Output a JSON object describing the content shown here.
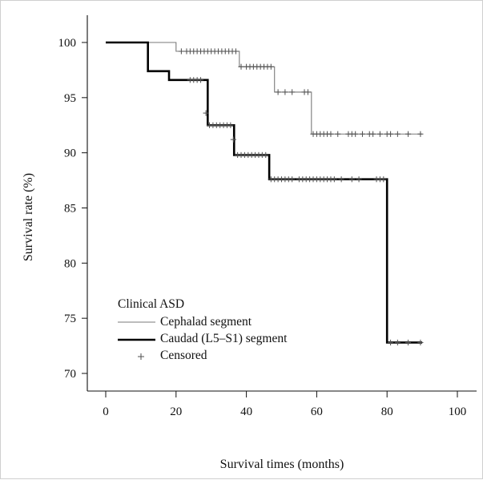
{
  "chart_data": {
    "type": "line",
    "subtype": "kaplan-meier-step",
    "xlabel": "Survival times (months)",
    "ylabel": "Survival rate (%)",
    "xlim": [
      0,
      100
    ],
    "ylim": [
      70,
      100
    ],
    "x_ticks": [
      "0",
      "20",
      "40",
      "60",
      "80",
      "100"
    ],
    "y_ticks": [
      "70",
      "75",
      "80",
      "85",
      "90",
      "95",
      "100"
    ],
    "grid": false,
    "legend": {
      "title": "Clinical ASD",
      "position": "bottom-left",
      "entries": [
        {
          "label": "Cephalad segment",
          "style": "thin-gray-line"
        },
        {
          "label": "Caudad (L5–S1) segment",
          "style": "thick-black-line"
        },
        {
          "label": "Censored",
          "style": "plus-marker"
        }
      ]
    },
    "series": [
      {
        "name": "Cephalad segment",
        "color": "#7a7a7a",
        "steps": [
          [
            0,
            100
          ],
          [
            20,
            99.2
          ],
          [
            38,
            97.8
          ],
          [
            48,
            95.5
          ],
          [
            58.5,
            91.7
          ],
          [
            90,
            91.7
          ]
        ],
        "censored": [
          [
            21.5,
            99.2
          ],
          [
            23,
            99.2
          ],
          [
            24,
            99.2
          ],
          [
            25,
            99.2
          ],
          [
            26,
            99.2
          ],
          [
            27,
            99.2
          ],
          [
            28,
            99.2
          ],
          [
            29,
            99.2
          ],
          [
            30,
            99.2
          ],
          [
            31,
            99.2
          ],
          [
            32,
            99.2
          ],
          [
            33,
            99.2
          ],
          [
            34,
            99.2
          ],
          [
            35,
            99.2
          ],
          [
            36,
            99.2
          ],
          [
            37,
            99.2
          ],
          [
            38.5,
            97.8
          ],
          [
            40,
            97.8
          ],
          [
            41,
            97.8
          ],
          [
            42,
            97.8
          ],
          [
            43,
            97.8
          ],
          [
            44,
            97.8
          ],
          [
            45,
            97.8
          ],
          [
            46,
            97.8
          ],
          [
            47,
            97.8
          ],
          [
            49,
            95.5
          ],
          [
            51,
            95.5
          ],
          [
            53,
            95.5
          ],
          [
            56.5,
            95.5
          ],
          [
            57.5,
            95.5
          ],
          [
            59,
            91.7
          ],
          [
            60,
            91.7
          ],
          [
            61,
            91.7
          ],
          [
            62,
            91.7
          ],
          [
            63,
            91.7
          ],
          [
            64,
            91.7
          ],
          [
            66,
            91.7
          ],
          [
            69,
            91.7
          ],
          [
            70,
            91.7
          ],
          [
            71,
            91.7
          ],
          [
            73,
            91.7
          ],
          [
            75,
            91.7
          ],
          [
            76,
            91.7
          ],
          [
            78,
            91.7
          ],
          [
            80,
            91.7
          ],
          [
            81,
            91.7
          ],
          [
            83,
            91.7
          ],
          [
            86,
            91.7
          ],
          [
            89.5,
            91.7
          ]
        ]
      },
      {
        "name": "Caudad (L5–S1) segment",
        "color": "#000000",
        "steps": [
          [
            0,
            100
          ],
          [
            12,
            97.4
          ],
          [
            18,
            96.6
          ],
          [
            29,
            92.5
          ],
          [
            36.5,
            89.8
          ],
          [
            46.5,
            87.6
          ],
          [
            80,
            72.8
          ],
          [
            90,
            72.8
          ]
        ],
        "censored": [
          [
            24,
            96.6
          ],
          [
            25,
            96.6
          ],
          [
            26,
            96.6
          ],
          [
            27,
            96.6
          ],
          [
            28.5,
            93.6
          ],
          [
            29.5,
            92.5
          ],
          [
            30.5,
            92.5
          ],
          [
            31.5,
            92.5
          ],
          [
            32.5,
            92.5
          ],
          [
            33.5,
            92.5
          ],
          [
            34.5,
            92.5
          ],
          [
            35.5,
            92.5
          ],
          [
            36.3,
            91.2
          ],
          [
            37.5,
            89.8
          ],
          [
            38.5,
            89.8
          ],
          [
            39.5,
            89.8
          ],
          [
            40.5,
            89.8
          ],
          [
            41.5,
            89.8
          ],
          [
            42.5,
            89.8
          ],
          [
            43.5,
            89.8
          ],
          [
            44.5,
            89.8
          ],
          [
            45.5,
            89.8
          ],
          [
            47,
            87.6
          ],
          [
            48,
            87.6
          ],
          [
            49,
            87.6
          ],
          [
            50,
            87.6
          ],
          [
            51,
            87.6
          ],
          [
            52,
            87.6
          ],
          [
            53,
            87.6
          ],
          [
            55,
            87.6
          ],
          [
            56,
            87.6
          ],
          [
            57,
            87.6
          ],
          [
            58,
            87.6
          ],
          [
            59,
            87.6
          ],
          [
            60,
            87.6
          ],
          [
            61,
            87.6
          ],
          [
            62,
            87.6
          ],
          [
            63,
            87.6
          ],
          [
            64,
            87.6
          ],
          [
            65,
            87.6
          ],
          [
            67,
            87.6
          ],
          [
            70,
            87.6
          ],
          [
            72,
            87.6
          ],
          [
            77,
            87.6
          ],
          [
            78,
            87.6
          ],
          [
            79,
            87.6
          ],
          [
            81,
            72.8
          ],
          [
            83,
            72.8
          ],
          [
            86,
            72.8
          ],
          [
            89.5,
            72.8
          ]
        ]
      }
    ]
  }
}
